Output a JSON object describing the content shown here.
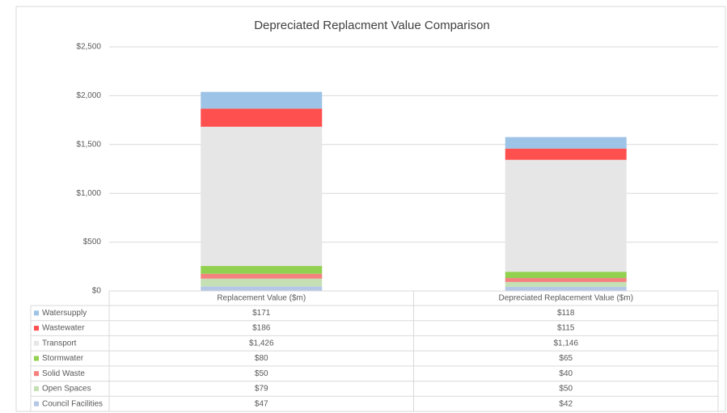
{
  "chart_data": {
    "type": "stacked_bar",
    "title": "Depreciated Replacment Value Comparison",
    "categories": [
      "Replacement Value ($m)",
      "Depreciated Replacement Value ($m)"
    ],
    "series": [
      {
        "name": "Watersupply",
        "color": "#9dc3e6",
        "values": [
          171,
          118
        ],
        "value_labels": [
          "$171",
          "$118"
        ]
      },
      {
        "name": "Wastewater",
        "color": "#ff5050",
        "values": [
          186,
          115
        ],
        "value_labels": [
          "$186",
          "$115"
        ]
      },
      {
        "name": "Transport",
        "color": "#e7e6e6",
        "values": [
          1426,
          1146
        ],
        "value_labels": [
          "$1,426",
          "$1,146"
        ]
      },
      {
        "name": "Stormwater",
        "color": "#92d050",
        "values": [
          80,
          65
        ],
        "value_labels": [
          "$80",
          "$65"
        ]
      },
      {
        "name": "Solid Waste",
        "color": "#f4817f",
        "values": [
          50,
          40
        ],
        "value_labels": [
          "$50",
          "$40"
        ]
      },
      {
        "name": "Open Spaces",
        "color": "#c5e0b4",
        "values": [
          79,
          50
        ],
        "value_labels": [
          "$79",
          "$50"
        ]
      },
      {
        "name": "Council Facilities",
        "color": "#b4c7e7",
        "values": [
          47,
          42
        ],
        "value_labels": [
          "$47",
          "$42"
        ]
      }
    ],
    "ylim": [
      0,
      2500
    ],
    "yticks": [
      {
        "value": 0,
        "label": "$0"
      },
      {
        "value": 500,
        "label": "$500"
      },
      {
        "value": 1000,
        "label": "$1,000"
      },
      {
        "value": 1500,
        "label": "$1,500"
      },
      {
        "value": 2000,
        "label": "$2,000"
      },
      {
        "value": 2500,
        "label": "$2,500"
      }
    ],
    "grid": true
  }
}
